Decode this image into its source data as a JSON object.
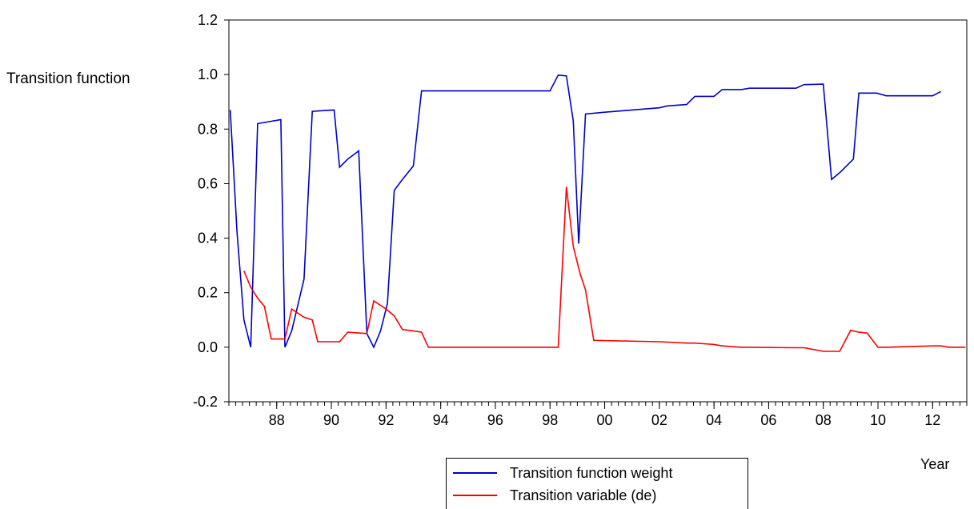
{
  "chart_data": {
    "type": "line",
    "ylabel": "Transition function",
    "xlabel": "Year",
    "ylim": [
      -0.2,
      1.2
    ],
    "yticks": [
      "-0.2",
      "0.0",
      "0.2",
      "0.4",
      "0.6",
      "0.8",
      "1.0",
      "1.2"
    ],
    "xlim": [
      1986.25,
      2013.25
    ],
    "xticks": [
      {
        "x": 1988,
        "label": "88"
      },
      {
        "x": 1990,
        "label": "90"
      },
      {
        "x": 1992,
        "label": "92"
      },
      {
        "x": 1994,
        "label": "94"
      },
      {
        "x": 1996,
        "label": "96"
      },
      {
        "x": 1998,
        "label": "98"
      },
      {
        "x": 2000,
        "label": "00"
      },
      {
        "x": 2002,
        "label": "02"
      },
      {
        "x": 2004,
        "label": "04"
      },
      {
        "x": 2006,
        "label": "06"
      },
      {
        "x": 2008,
        "label": "08"
      },
      {
        "x": 2010,
        "label": "10"
      },
      {
        "x": 2012,
        "label": "12"
      }
    ],
    "legend_position": "bottom-center",
    "grid": false,
    "series": [
      {
        "name": "Transition function weight",
        "color": "#0000cc",
        "x": [
          1986.3,
          1986.55,
          1986.8,
          1987.05,
          1987.3,
          1988.15,
          1988.3,
          1988.55,
          1989.0,
          1989.3,
          1990.1,
          1990.3,
          1990.6,
          1991.0,
          1991.3,
          1991.55,
          1991.8,
          1992.05,
          1992.3,
          1992.6,
          1993.0,
          1993.3,
          1995.0,
          1998.0,
          1998.3,
          1998.6,
          1998.85,
          1999.05,
          1999.3,
          2000.0,
          2002.0,
          2002.3,
          2003.0,
          2003.3,
          2004.0,
          2004.3,
          2005.0,
          2005.3,
          2007.0,
          2007.3,
          2008.0,
          2008.3,
          2008.6,
          2009.1,
          2009.3,
          2009.95,
          2010.3,
          2012.0,
          2012.3
        ],
        "y": [
          0.87,
          0.42,
          0.1,
          0.0,
          0.82,
          0.835,
          0.0,
          0.06,
          0.25,
          0.865,
          0.87,
          0.66,
          0.69,
          0.72,
          0.05,
          0.0,
          0.06,
          0.16,
          0.575,
          0.615,
          0.665,
          0.94,
          0.94,
          0.94,
          0.998,
          0.995,
          0.83,
          0.38,
          0.855,
          0.862,
          0.878,
          0.885,
          0.89,
          0.92,
          0.92,
          0.945,
          0.945,
          0.95,
          0.95,
          0.963,
          0.965,
          0.615,
          0.64,
          0.69,
          0.932,
          0.932,
          0.922,
          0.922,
          0.938
        ]
      },
      {
        "name": "Transition variable (de)",
        "color": "#ff0000",
        "x": [
          1986.8,
          1987.05,
          1987.3,
          1987.55,
          1987.8,
          1988.0,
          1988.3,
          1988.55,
          1989.0,
          1989.3,
          1989.5,
          1990.3,
          1990.6,
          1991.3,
          1991.55,
          1992.0,
          1992.3,
          1992.6,
          1993.0,
          1993.3,
          1993.55,
          1998.3,
          1998.6,
          1998.85,
          1999.1,
          1999.3,
          1999.6,
          2002.0,
          2003.0,
          2003.3,
          2004.0,
          2004.3,
          2005.0,
          2005.3,
          2007.0,
          2007.3,
          2008.0,
          2008.6,
          2009.0,
          2009.3,
          2009.6,
          2010.0,
          2010.3,
          2012.0,
          2012.3,
          2012.6,
          2013.2
        ],
        "y": [
          0.28,
          0.22,
          0.18,
          0.15,
          0.03,
          0.03,
          0.03,
          0.14,
          0.11,
          0.1,
          0.02,
          0.02,
          0.055,
          0.05,
          0.17,
          0.14,
          0.115,
          0.065,
          0.06,
          0.055,
          0.0,
          0.0,
          0.588,
          0.37,
          0.27,
          0.21,
          0.025,
          0.02,
          0.015,
          0.015,
          0.01,
          0.005,
          0.0,
          0.0,
          -0.002,
          -0.002,
          -0.015,
          -0.015,
          0.062,
          0.055,
          0.052,
          0.0,
          0.0,
          0.005,
          0.005,
          0.0,
          0.0
        ]
      }
    ]
  }
}
